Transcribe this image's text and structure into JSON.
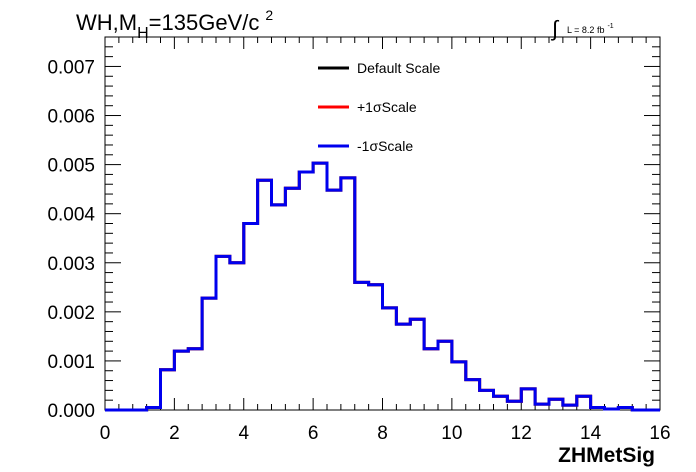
{
  "chart_data": {
    "type": "line",
    "title_main": "WH,M",
    "title_sub": "H",
    "title_rest": "=135GeV/c",
    "title_sup": "2",
    "lumi_label": "L = 8.2 fb",
    "lumi_sup": "-1",
    "xlabel": "ZHMetSig",
    "ylabel": "",
    "xlim": [
      0,
      16
    ],
    "ylim": [
      0,
      0.0076
    ],
    "x_ticks": [
      "0",
      "2",
      "4",
      "6",
      "8",
      "10",
      "12",
      "14",
      "16"
    ],
    "y_ticks": [
      "0.000",
      "0.001",
      "0.002",
      "0.003",
      "0.004",
      "0.005",
      "0.006",
      "0.007"
    ],
    "bin_width": 0.4,
    "bin_edges_start": 0,
    "legend_position": "top-center",
    "series": [
      {
        "name": "Default Scale",
        "color": "#000000",
        "values": [
          0,
          0,
          0,
          5e-05,
          0.00082,
          0.0012,
          0.00125,
          0.00228,
          0.00313,
          0.003,
          0.0038,
          0.00468,
          0.00418,
          0.00452,
          0.00485,
          0.00503,
          0.00448,
          0.00473,
          0.0026,
          0.00255,
          0.00208,
          0.00175,
          0.00185,
          0.00125,
          0.0014,
          0.00098,
          0.00062,
          0.0004,
          0.00028,
          0.00018,
          0.00043,
          0.00012,
          0.00022,
          0.0001,
          0.00028,
          5e-05,
          2e-05,
          5e-05,
          0,
          0,
          0
        ]
      },
      {
        "name": "+1σScale",
        "color": "#ff0000",
        "values": [
          0,
          0,
          0,
          5e-05,
          0.00082,
          0.0012,
          0.00125,
          0.00228,
          0.00313,
          0.003,
          0.0038,
          0.00468,
          0.00418,
          0.00452,
          0.00485,
          0.00503,
          0.00448,
          0.00473,
          0.0026,
          0.00255,
          0.00208,
          0.00175,
          0.00185,
          0.00125,
          0.0014,
          0.00098,
          0.00062,
          0.0004,
          0.00028,
          0.00018,
          0.00043,
          0.00012,
          0.00022,
          0.0001,
          0.00028,
          5e-05,
          2e-05,
          5e-05,
          0,
          0,
          0
        ]
      },
      {
        "name": "-1σScale",
        "color": "#0000ee",
        "values": [
          0,
          0,
          0,
          5e-05,
          0.00082,
          0.0012,
          0.00125,
          0.00228,
          0.00313,
          0.003,
          0.0038,
          0.00468,
          0.00418,
          0.00452,
          0.00485,
          0.00503,
          0.00448,
          0.00473,
          0.0026,
          0.00255,
          0.00208,
          0.00175,
          0.00185,
          0.00125,
          0.0014,
          0.00098,
          0.00062,
          0.0004,
          0.00028,
          0.00018,
          0.00043,
          0.00012,
          0.00022,
          0.0001,
          0.00028,
          5e-05,
          2e-05,
          5e-05,
          0,
          0,
          0
        ]
      }
    ]
  }
}
